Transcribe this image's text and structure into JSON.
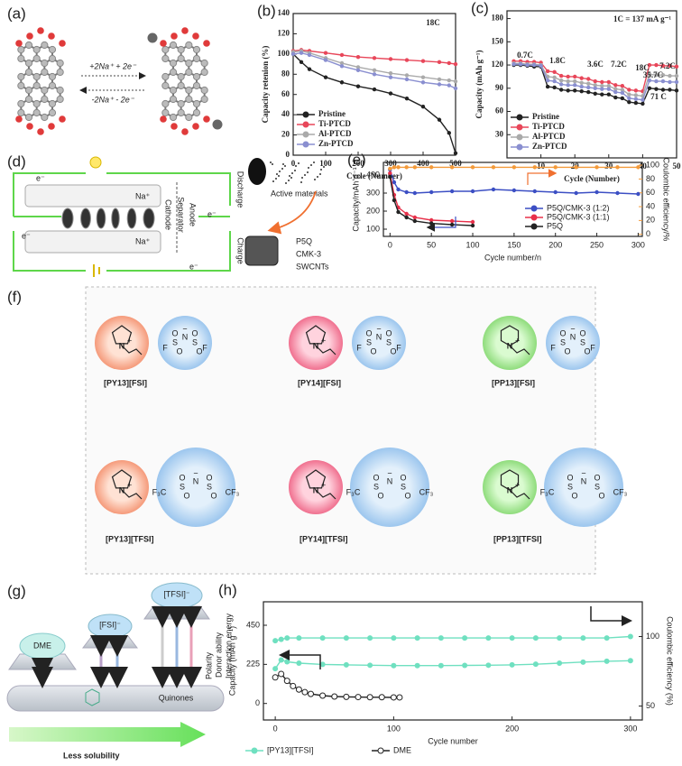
{
  "chart_data": [
    {
      "type": "line",
      "panel_label": "(b)",
      "xlabel": "Cycle (Number)",
      "ylabel": "Capacity retenion (%)",
      "annotations": [
        "18C"
      ],
      "legend": "lower left",
      "xlim": [
        0,
        500
      ],
      "xticks": [
        0,
        100,
        200,
        300,
        400,
        500
      ],
      "ylim": [
        0,
        140
      ],
      "yticks": [
        0,
        20,
        40,
        60,
        80,
        100,
        120,
        140
      ],
      "x": [
        0,
        25,
        50,
        100,
        150,
        200,
        250,
        300,
        350,
        400,
        450,
        480,
        500
      ],
      "series": [
        {
          "name": "Pristine",
          "color": "#222222",
          "values": [
            100,
            92,
            85,
            77,
            72,
            68,
            65,
            61,
            56,
            48,
            35,
            22,
            2
          ]
        },
        {
          "name": "Ti-PTCD",
          "color": "#e8475a",
          "values": [
            103,
            104,
            103,
            101,
            99,
            97,
            96,
            95,
            94,
            93,
            92,
            91,
            90
          ]
        },
        {
          "name": "Al-PTCD",
          "color": "#aaaaaa",
          "values": [
            102,
            103,
            101,
            96,
            91,
            87,
            84,
            81,
            79,
            77,
            75,
            74,
            73
          ]
        },
        {
          "name": "Zn-PTCD",
          "color": "#8a8fd0",
          "values": [
            100,
            101,
            99,
            94,
            88,
            84,
            80,
            77,
            75,
            72,
            70,
            69,
            66
          ]
        }
      ]
    },
    {
      "type": "line",
      "panel_label": "(c)",
      "xlabel": "Cycle (Number)",
      "ylabel": "Capacity (mAh g⁻¹)",
      "annotations": [
        "1C = 137 mA g⁻¹",
        "0.7C",
        "1.8C",
        "3.6C",
        "7.2C",
        "18C",
        "35.7C",
        "71 C",
        "7.2C"
      ],
      "legend": "lower left",
      "xlim": [
        0,
        50
      ],
      "xticks": [
        10,
        20,
        30,
        40,
        50
      ],
      "ylim": [
        0,
        190
      ],
      "yticks": [
        30,
        60,
        90,
        120,
        150,
        180
      ],
      "x": [
        2,
        4,
        6,
        8,
        10,
        12,
        14,
        16,
        18,
        20,
        22,
        24,
        26,
        28,
        30,
        32,
        34,
        36,
        38,
        40,
        42,
        44,
        46,
        48,
        50
      ],
      "series": [
        {
          "name": "Pristine",
          "color": "#222222",
          "values": [
            120,
            120,
            119,
            118,
            118,
            92,
            91,
            88,
            87,
            87,
            86,
            85,
            83,
            82,
            82,
            78,
            77,
            72,
            71,
            70,
            90,
            89,
            88,
            88,
            87
          ]
        },
        {
          "name": "Ti-PTCD",
          "color": "#e8475a",
          "values": [
            125,
            125,
            124,
            124,
            123,
            112,
            111,
            106,
            105,
            105,
            103,
            102,
            99,
            98,
            98,
            94,
            93,
            88,
            87,
            86,
            120,
            120,
            119,
            119,
            118
          ]
        },
        {
          "name": "Al-PTCD",
          "color": "#aaaaaa",
          "values": [
            122,
            122,
            121,
            121,
            120,
            105,
            104,
            100,
            99,
            99,
            97,
            96,
            94,
            93,
            93,
            89,
            88,
            82,
            81,
            80,
            108,
            107,
            107,
            106,
            106
          ]
        },
        {
          "name": "Zn-PTCD",
          "color": "#8a8fd0",
          "values": [
            121,
            121,
            120,
            120,
            119,
            100,
            99,
            95,
            94,
            94,
            92,
            91,
            90,
            89,
            89,
            85,
            84,
            77,
            76,
            75,
            100,
            99,
            99,
            98,
            98
          ]
        }
      ]
    },
    {
      "type": "line",
      "panel_label": "(e)",
      "xlabel": "Cycle  number/n",
      "ylabel": "Capacity/mAh g⁻¹",
      "y2label": "Coulombic efficiency/%",
      "y2color": "#f39a3a",
      "legend": "center right",
      "xlim": [
        -8,
        305
      ],
      "xticks": [
        0,
        50,
        100,
        150,
        200,
        250,
        300
      ],
      "ylim": [
        60,
        470
      ],
      "yticks": [
        100,
        200,
        300,
        400
      ],
      "y2lim": [
        -3,
        104
      ],
      "y2ticks": [
        0,
        20,
        40,
        60,
        80,
        100
      ],
      "x": [
        0,
        5,
        10,
        20,
        30,
        50,
        75,
        100,
        125,
        150,
        175,
        200,
        225,
        250,
        275,
        300
      ],
      "series": [
        {
          "name": "P5Q/CMK-3 (1:2)",
          "color": "#3c4fc4",
          "values": [
            430,
            360,
            320,
            305,
            300,
            305,
            310,
            310,
            320,
            315,
            310,
            305,
            300,
            305,
            300,
            295
          ]
        },
        {
          "name": "P5Q/CMK-3 (1:1)",
          "color": "#e8304a",
          "values": [
            410,
            290,
            220,
            185,
            165,
            150,
            145,
            140,
            null,
            null,
            null,
            null,
            null,
            null,
            null,
            null
          ]
        },
        {
          "name": "P5Q",
          "color": "#222222",
          "values": [
            390,
            260,
            195,
            165,
            145,
            132,
            125,
            120,
            null,
            null,
            null,
            null,
            null,
            null,
            null,
            null
          ]
        },
        {
          "color": "#f39a3a",
          "axis": "y2",
          "values": [
            95,
            97,
            97,
            97,
            97,
            97,
            97,
            97,
            97,
            97,
            97,
            97,
            97,
            97,
            97,
            97
          ]
        }
      ]
    },
    {
      "type": "line",
      "panel_label": "(h)",
      "xlabel": "Cycle number",
      "ylabel": "Capacity (mAh g⁻¹)",
      "y2label": "Coulombic efficiency (%)",
      "legend": "bottom",
      "xlim": [
        -10,
        310
      ],
      "xticks": [
        0,
        100,
        200,
        300
      ],
      "ylim": [
        -95,
        585
      ],
      "yticks": [
        0,
        225,
        450
      ],
      "y2lim": [
        40,
        125
      ],
      "y2ticks": [
        50,
        100
      ],
      "series": [
        {
          "name": "[PY13][TFSI]",
          "color": "#6fe0c0",
          "x": [
            0,
            5,
            10,
            20,
            40,
            60,
            80,
            100,
            120,
            140,
            160,
            180,
            200,
            220,
            240,
            260,
            280,
            300
          ],
          "values": [
            200,
            250,
            240,
            232,
            225,
            222,
            220,
            218,
            218,
            218,
            219,
            220,
            222,
            226,
            232,
            238,
            243,
            246
          ]
        },
        {
          "color": "#6fe0c0",
          "axis": "y2",
          "x": [
            0,
            5,
            10,
            20,
            40,
            60,
            80,
            100,
            120,
            140,
            160,
            180,
            200,
            220,
            240,
            260,
            280,
            300
          ],
          "values": [
            97,
            98,
            99,
            99,
            99,
            99,
            99,
            99,
            99,
            99,
            99,
            99,
            99,
            99,
            99,
            99,
            99,
            100
          ]
        },
        {
          "name": "DME",
          "color": "#222222",
          "hollow": true,
          "x": [
            0,
            5,
            10,
            15,
            20,
            25,
            30,
            40,
            50,
            60,
            70,
            80,
            90,
            100,
            105
          ],
          "values": [
            150,
            170,
            130,
            100,
            80,
            65,
            55,
            45,
            40,
            38,
            37,
            36,
            36,
            35,
            35
          ]
        }
      ]
    }
  ],
  "panel_a": {
    "label": "(a)",
    "forward": "+2Na⁺ + 2e⁻",
    "reverse": "-2Na⁺ - 2e⁻"
  },
  "panel_d": {
    "label": "(d)",
    "discharge": "Discharge",
    "charge": "Charge",
    "cathode": "Cathode",
    "separator": "Separator",
    "anode": "Anode",
    "electron": "e⁻",
    "sodium": "Na⁺",
    "active": "Active materials",
    "legend": [
      "P5Q",
      "CMK-3",
      "SWCNTs"
    ]
  },
  "panel_f": {
    "label": "(f)",
    "salts": [
      "[PY13][FSI]",
      "[PY14][FSI]",
      "[PP13][FSI]",
      "[PY13][TFSI]",
      "[PY14][TFSI]",
      "[PP13][TFSI]"
    ],
    "cation_atom": "N",
    "cation_charge": "+",
    "anion_charge": "−",
    "oxygen": "O",
    "fsi_atoms": [
      "F",
      "S",
      "N",
      "S",
      "F"
    ],
    "tfsi_atoms": [
      "F₃C",
      "S",
      "N",
      "S",
      "CF₃"
    ]
  },
  "panel_g": {
    "label": "(g)",
    "dme": "DME",
    "fsi": "[FSI]⁻",
    "tfsi": "[TFSI]⁻",
    "quinones": "Quinones",
    "polarity": "Polarity",
    "donor": "Donor ability",
    "interaction": "Interaction energy",
    "solubility": "Less solubility"
  }
}
